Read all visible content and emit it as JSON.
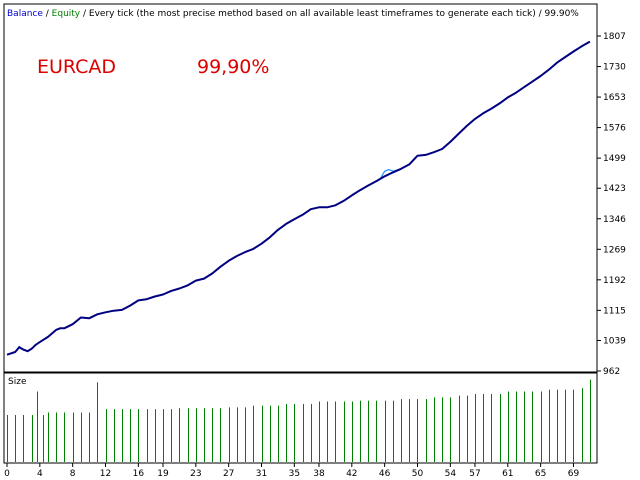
{
  "header": {
    "balance_label": "Balance",
    "sep1": " / ",
    "equity_label": "Equity",
    "sep2": " / ",
    "description": "Every tick (the most precise method based on all available least timeframes to generate each tick)",
    "sep3": " / ",
    "quality": "99.90%"
  },
  "overlay": {
    "symbol": "EURCAD",
    "quality": "99,90%"
  },
  "colors": {
    "background": "#ffffff",
    "frame": "#000000",
    "balance_line": "#000080",
    "equity_line": "#1e90ff",
    "size_bars": "#008000",
    "balance_label": "#0000cc",
    "equity_label": "#008000",
    "overlay_text": "#dd0000"
  },
  "chart_data": {
    "type": "line",
    "title": "",
    "main_axis": {
      "ylim": [
        962,
        1807
      ],
      "yticks": [
        1807,
        1730,
        1653,
        1576,
        1499,
        1423,
        1346,
        1269,
        1192,
        1115,
        1039,
        962
      ]
    },
    "x_axis": {
      "xlim": [
        0,
        71.5
      ],
      "xticks": [
        "0",
        "4",
        "8",
        "12",
        "16",
        "19",
        "23",
        "27",
        "31",
        "35",
        "38",
        "42",
        "46",
        "50",
        "54",
        "57",
        "61",
        "65",
        "69"
      ],
      "xtick_positions": [
        0,
        4,
        8,
        12,
        16,
        19,
        23,
        27,
        31,
        35,
        38,
        42,
        46,
        50,
        54,
        57,
        61,
        65,
        69
      ]
    },
    "series": [
      {
        "name": "Balance",
        "x": [
          0,
          1,
          1.5,
          2,
          2.5,
          3,
          3.5,
          4,
          5,
          6,
          6.5,
          7,
          8,
          9,
          10,
          11,
          12,
          13,
          14,
          15,
          16,
          17,
          18,
          19,
          20,
          21,
          22,
          23,
          24,
          25,
          26,
          27,
          28,
          29,
          30,
          31,
          32,
          33,
          34,
          35,
          36,
          37,
          38,
          39,
          40,
          41,
          42,
          43,
          44,
          45,
          46,
          47,
          48,
          49,
          50,
          51,
          52,
          53,
          54,
          55,
          56,
          57,
          58,
          59,
          60,
          61,
          62,
          63,
          64,
          65,
          66,
          67,
          68,
          69,
          70,
          71
        ],
        "values": [
          1003,
          1010,
          1022,
          1016,
          1012,
          1018,
          1028,
          1035,
          1048,
          1066,
          1070,
          1070,
          1080,
          1097,
          1095,
          1105,
          1110,
          1114,
          1116,
          1127,
          1140,
          1143,
          1150,
          1155,
          1164,
          1170,
          1178,
          1190,
          1195,
          1208,
          1225,
          1240,
          1252,
          1262,
          1270,
          1283,
          1299,
          1318,
          1333,
          1345,
          1356,
          1370,
          1375,
          1375,
          1380,
          1391,
          1405,
          1418,
          1430,
          1441,
          1453,
          1463,
          1472,
          1483,
          1505,
          1507,
          1514,
          1522,
          1540,
          1560,
          1580,
          1598,
          1612,
          1624,
          1637,
          1652,
          1664,
          1678,
          1692,
          1706,
          1722,
          1740,
          1754,
          1768,
          1781,
          1793
        ]
      },
      {
        "name": "Equity",
        "x": [
          0,
          1,
          1.5,
          2,
          2.5,
          3,
          3.5,
          4,
          5,
          6,
          6.5,
          7,
          8,
          9,
          10,
          11,
          12,
          13,
          14,
          15,
          16,
          17,
          18,
          19,
          20,
          21,
          22,
          23,
          24,
          25,
          26,
          27,
          28,
          29,
          30,
          31,
          32,
          33,
          34,
          35,
          36,
          37,
          38,
          39,
          40,
          41,
          42,
          43,
          44,
          45,
          45.5,
          46,
          46.5,
          47,
          48,
          49,
          50,
          51,
          52,
          53,
          54,
          55,
          56,
          57,
          58,
          59,
          60,
          61,
          62,
          63,
          64,
          65,
          66,
          67,
          68,
          69,
          70,
          71
        ],
        "values": [
          1003,
          1010,
          1024,
          1015,
          1012,
          1018,
          1028,
          1035,
          1048,
          1066,
          1070,
          1070,
          1080,
          1097,
          1095,
          1105,
          1110,
          1114,
          1116,
          1127,
          1140,
          1143,
          1150,
          1155,
          1164,
          1170,
          1178,
          1190,
          1195,
          1208,
          1225,
          1240,
          1252,
          1262,
          1270,
          1283,
          1299,
          1318,
          1333,
          1345,
          1356,
          1370,
          1375,
          1375,
          1380,
          1391,
          1405,
          1418,
          1430,
          1441,
          1448,
          1466,
          1470,
          1466,
          1472,
          1483,
          1505,
          1507,
          1514,
          1522,
          1540,
          1560,
          1580,
          1598,
          1612,
          1624,
          1637,
          1652,
          1664,
          1678,
          1692,
          1706,
          1722,
          1740,
          1754,
          1768,
          1781,
          1793
        ]
      }
    ],
    "size_panel": {
      "label": "Size",
      "type": "bar",
      "ylim": [
        0,
        1
      ],
      "x": [
        0,
        1,
        2,
        3,
        3.7,
        4.4,
        5,
        6,
        7,
        8,
        9,
        10,
        11,
        12,
        13,
        14,
        15,
        16,
        17,
        18,
        19,
        20,
        21,
        22,
        23,
        24,
        25,
        26,
        27,
        28,
        29,
        30,
        31,
        32,
        33,
        34,
        35,
        36,
        37,
        38,
        39,
        40,
        41,
        42,
        43,
        44,
        45,
        46,
        47,
        48,
        49,
        50,
        51,
        52,
        53,
        54,
        55,
        56,
        57,
        58,
        59,
        60,
        61,
        62,
        63,
        64,
        65,
        66,
        67,
        68,
        69,
        70,
        71
      ],
      "values": [
        0.56,
        0.56,
        0.56,
        0.56,
        0.84,
        0.56,
        0.59,
        0.59,
        0.59,
        0.59,
        0.59,
        0.59,
        0.95,
        0.63,
        0.63,
        0.63,
        0.63,
        0.63,
        0.63,
        0.63,
        0.63,
        0.63,
        0.64,
        0.64,
        0.64,
        0.64,
        0.64,
        0.64,
        0.65,
        0.65,
        0.65,
        0.67,
        0.67,
        0.67,
        0.67,
        0.69,
        0.69,
        0.69,
        0.69,
        0.72,
        0.72,
        0.72,
        0.72,
        0.72,
        0.73,
        0.73,
        0.73,
        0.73,
        0.73,
        0.75,
        0.75,
        0.75,
        0.75,
        0.77,
        0.77,
        0.77,
        0.79,
        0.79,
        0.81,
        0.81,
        0.81,
        0.81,
        0.84,
        0.84,
        0.84,
        0.84,
        0.84,
        0.86,
        0.86,
        0.86,
        0.86,
        0.88,
        0.98
      ]
    }
  }
}
